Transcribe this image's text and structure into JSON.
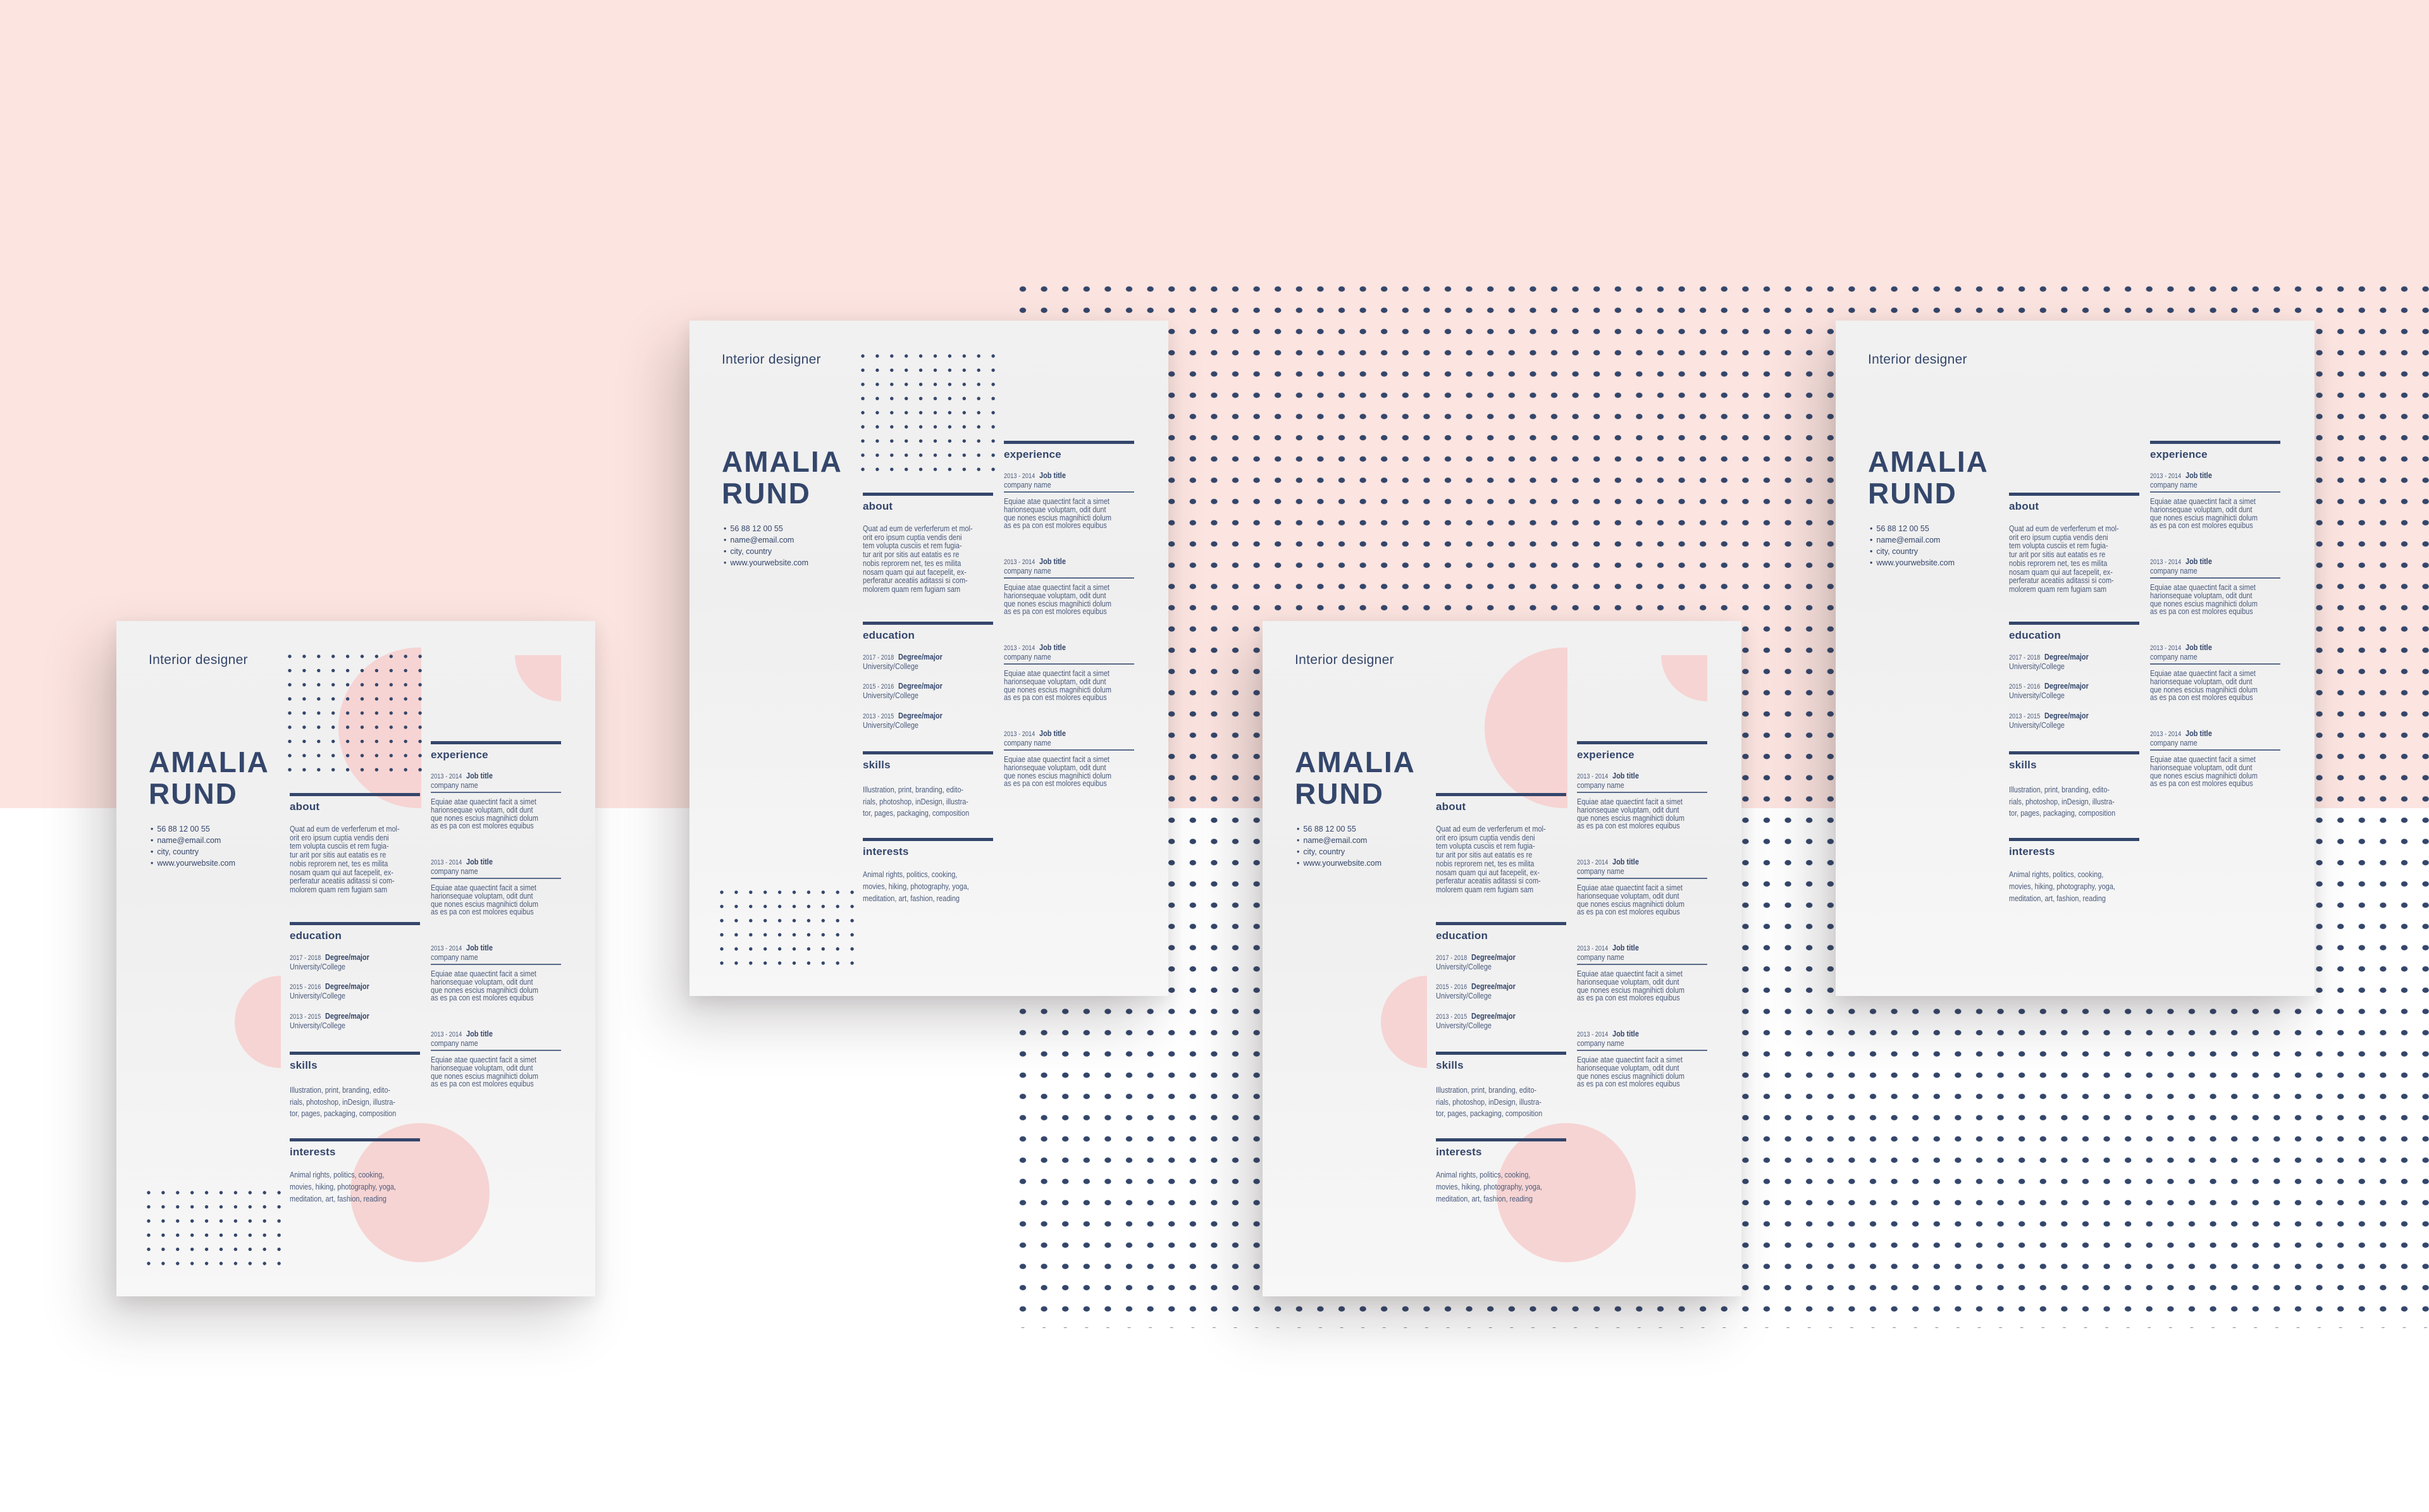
{
  "colors": {
    "background_pink": "#fce4e0",
    "navy": "#34466b",
    "circle_pink": "#f6d4d3",
    "paper": "#f1f1f1"
  },
  "resume": {
    "title": "Interior designer",
    "first_name": "AMALIA",
    "last_name": "RUND",
    "contacts": [
      "56 88 12 00 55",
      "name@email.com",
      "city, country",
      "www.yourwebsite.com"
    ],
    "about": {
      "heading": "about",
      "lines": [
        "Quat ad eum de verferferum et mol-",
        "orit ero ipsum cuptia vendis deni",
        "tem volupta cusciis et rem fugia-",
        "tur arit por sitis aut eatatis es re",
        "nobis reprorem net, tes es milita",
        "nosam quam qui aut facepelit, ex-",
        "perferatur aceatiis aditassi si com-",
        "molorem quam rem fugiam sam"
      ]
    },
    "education": {
      "heading": "education",
      "entries": [
        {
          "years": "2017 - 2018",
          "degree": "Degree/major",
          "school": "University/College"
        },
        {
          "years": "2015 - 2016",
          "degree": "Degree/major",
          "school": "University/College"
        },
        {
          "years": "2013 - 2015",
          "degree": "Degree/major",
          "school": "University/College"
        }
      ]
    },
    "skills": {
      "heading": "skills",
      "lines": [
        "Illustration, print, branding, edito-",
        "rials, photoshop, inDesign, illustra-",
        "tor, pages, packaging, composition"
      ]
    },
    "interests": {
      "heading": "interests",
      "lines": [
        "Animal rights, politics, cooking,",
        "movies, hiking, photography, yoga,",
        "meditation, art, fashion, reading"
      ]
    },
    "experience": {
      "heading": "experience",
      "entries": [
        {
          "years": "2013 - 2014",
          "title": "Job title",
          "company": "company name",
          "lines": [
            "Equiae atae quaectint facit a simet",
            "harionsequae voluptam, odit dunt",
            "que nones escius magnihicti dolum",
            "as es pa con est molores equibus"
          ]
        },
        {
          "years": "2013 - 2014",
          "title": "Job title",
          "company": "company name",
          "lines": [
            "Equiae atae quaectint facit a simet",
            "harionsequae voluptam, odit dunt",
            "que nones escius magnihicti dolum",
            "as es pa con est molores equibus"
          ]
        },
        {
          "years": "2013 - 2014",
          "title": "Job title",
          "company": "company name",
          "lines": [
            "Equiae atae quaectint facit a simet",
            "harionsequae voluptam, odit dunt",
            "que nones escius magnihicti dolum",
            "as es pa con est molores equibus"
          ]
        },
        {
          "years": "2013 - 2014",
          "title": "Job title",
          "company": "company name",
          "lines": [
            "Equiae atae quaectint facit a simet",
            "harionsequae voluptam, odit dunt",
            "que nones escius magnihicti dolum",
            "as es pa con est molores equibus"
          ]
        }
      ]
    }
  },
  "mockups": [
    {
      "variant": "circles-and-dots"
    },
    {
      "variant": "dots"
    },
    {
      "variant": "circles"
    },
    {
      "variant": "plain"
    }
  ]
}
